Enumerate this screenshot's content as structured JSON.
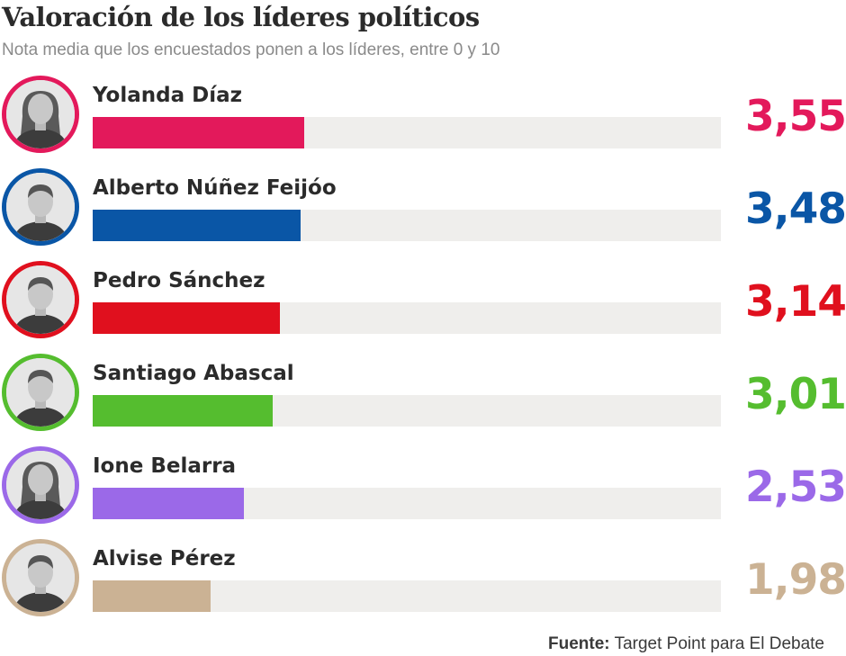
{
  "title": "Valoración de los líderes políticos",
  "subtitle": "Nota media que los encuestados ponen a los líderes, entre 0 y 10",
  "source": {
    "label": "Fuente:",
    "text": "Target Point para El Debate"
  },
  "chart_data": {
    "type": "bar",
    "orientation": "horizontal",
    "title": "Valoración de los líderes políticos",
    "subtitle": "Nota media que los encuestados ponen a los líderes, entre 0 y 10",
    "xlim": [
      0,
      10
    ],
    "grid": false,
    "categories": [
      "Yolanda Díaz",
      "Alberto Núñez Feijóo",
      "Pedro Sánchez",
      "Santiago Abascal",
      "Ione Belarra",
      "Alvise Pérez"
    ],
    "values": [
      3.55,
      3.48,
      3.14,
      3.01,
      2.53,
      1.98
    ],
    "value_labels": [
      "3,55",
      "3,48",
      "3,14",
      "3,01",
      "2,53",
      "1,98"
    ],
    "colors": [
      "#e3195b",
      "#0a56a6",
      "#e0101e",
      "#55bd2f",
      "#9b69e8",
      "#cbb294"
    ],
    "icons": [
      "portrait-yolanda-diaz",
      "portrait-alberto-nunez-feijoo",
      "portrait-pedro-sanchez",
      "portrait-santiago-abascal",
      "portrait-ione-belarra",
      "portrait-alvise-perez"
    ]
  }
}
